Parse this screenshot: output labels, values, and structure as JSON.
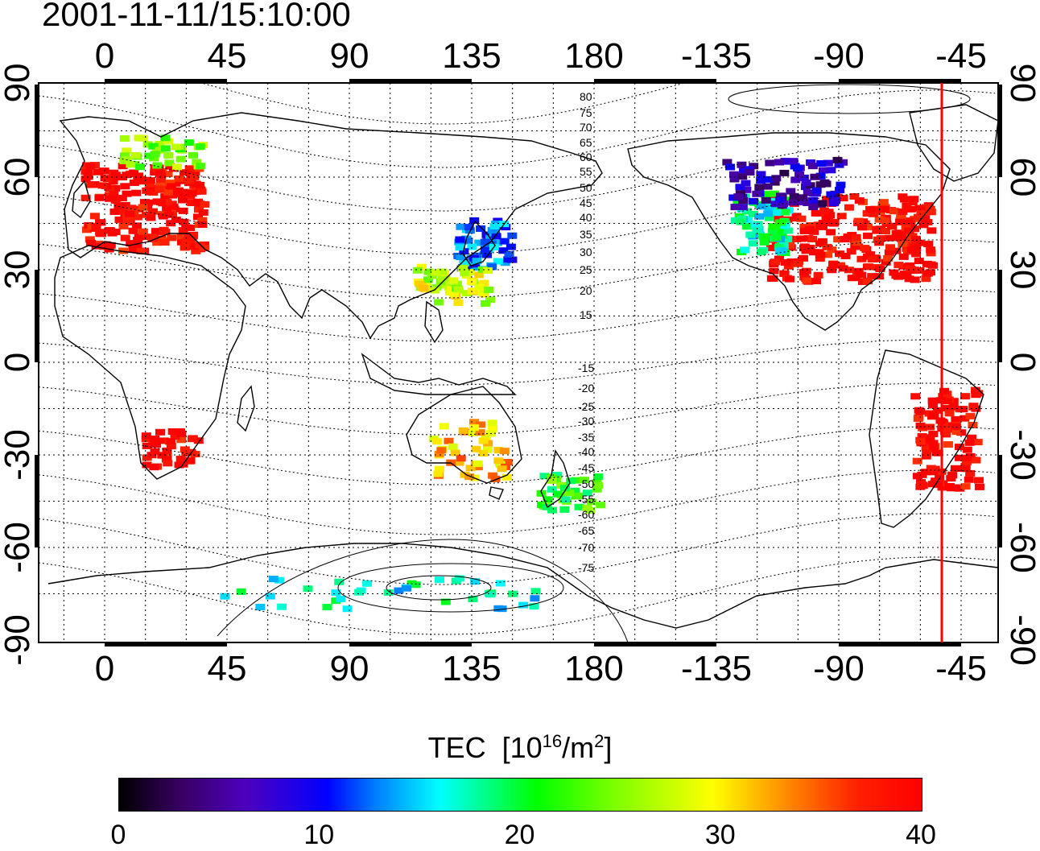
{
  "title": "2001-11-11/15:10:00",
  "map": {
    "projection": "equirectangular",
    "lon_center": 135,
    "lon_ticks_top": [
      "0",
      "45",
      "90",
      "135",
      "180",
      "-135",
      "-90",
      "-45"
    ],
    "lon_ticks_bottom": [
      "0",
      "45",
      "90",
      "135",
      "180",
      "-135",
      "-90",
      "-45"
    ],
    "lat_ticks_left": [
      "90",
      "60",
      "30",
      "0",
      "-30",
      "-60",
      "-90"
    ],
    "lat_ticks_right": [
      "90",
      "60",
      "30",
      "0",
      "-30",
      "-60",
      "-90"
    ],
    "grid": "dotted, 15 degree",
    "terminator_longitude": -48,
    "terminator_color": "#ff0000",
    "contour_labels": [
      "80",
      "75",
      "70",
      "65",
      "60",
      "55",
      "50",
      "45",
      "40",
      "35",
      "30",
      "25",
      "20",
      "15",
      "-15",
      "-20",
      "-25",
      "-30",
      "-35",
      "-40",
      "-45",
      "-50",
      "-55",
      "-60",
      "-65",
      "-70",
      "-75"
    ]
  },
  "colorbar": {
    "label": "TEC",
    "unit": "[10",
    "unit_exp": "16",
    "unit_mid": "/m",
    "unit_exp2": "2",
    "unit_end": "]",
    "min": 0,
    "max": 40,
    "tick_labels": [
      "0",
      "10",
      "20",
      "30",
      "40"
    ]
  },
  "tec_regions": [
    {
      "name": "europe",
      "lon": 15,
      "lat": 50,
      "tec": 40
    },
    {
      "name": "scandinavia",
      "lon": 22,
      "lat": 68,
      "tec": 25
    },
    {
      "name": "north-america-east",
      "lon": -85,
      "lat": 40,
      "tec": 40
    },
    {
      "name": "north-america-west",
      "lon": -118,
      "lat": 45,
      "tec": 18
    },
    {
      "name": "canada",
      "lon": -110,
      "lat": 58,
      "tec": 6
    },
    {
      "name": "japan",
      "lon": 140,
      "lat": 38,
      "tec": 12
    },
    {
      "name": "east-asia-south",
      "lon": 128,
      "lat": 25,
      "tec": 28
    },
    {
      "name": "south-america",
      "lon": -50,
      "lat": -25,
      "tec": 40
    },
    {
      "name": "southern-africa",
      "lon": 25,
      "lat": -28,
      "tec": 40
    },
    {
      "name": "australia",
      "lon": 135,
      "lat": -28,
      "tec": 32
    },
    {
      "name": "new-zealand",
      "lon": 172,
      "lat": -42,
      "tec": 22
    },
    {
      "name": "antarctica",
      "lon": 100,
      "lat": -75,
      "tec": 17
    }
  ]
}
